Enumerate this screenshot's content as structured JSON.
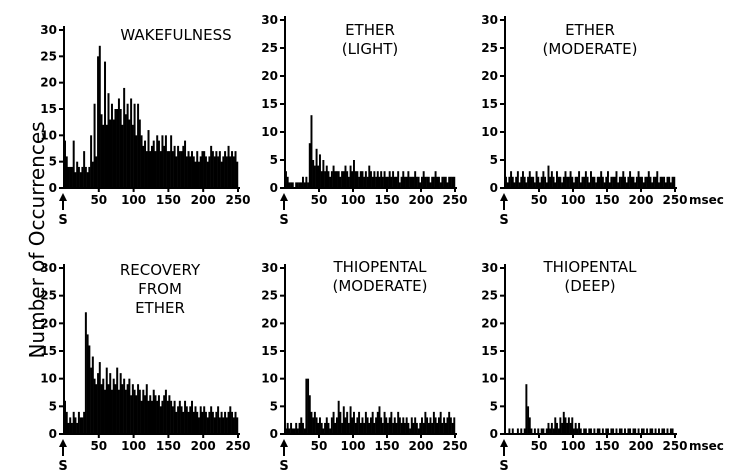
{
  "figure": {
    "ylabel": "Number of Occurrences",
    "xunit": "msec"
  },
  "chart_data": [
    {
      "type": "bar",
      "title": "WAKEFULNESS",
      "stimulus_label": "S",
      "xlim": [
        0,
        250
      ],
      "ylim": [
        0,
        30
      ],
      "xticks": [
        50,
        100,
        150,
        200,
        250
      ],
      "yticks": [
        0,
        5,
        10,
        15,
        20,
        25,
        30
      ],
      "bin_width": 2.5,
      "values": [
        9,
        6,
        4,
        4,
        4,
        9,
        3,
        5,
        4,
        3,
        4,
        7,
        4,
        3,
        4,
        10,
        5,
        16,
        6,
        25,
        27,
        14,
        12,
        24,
        12,
        18,
        13,
        16,
        13,
        15,
        15,
        17,
        15,
        12,
        19,
        14,
        16,
        13,
        17,
        12,
        16,
        10,
        16,
        13,
        10,
        8,
        9,
        7,
        11,
        7,
        8,
        9,
        7,
        10,
        9,
        7,
        10,
        8,
        10,
        7,
        7,
        10,
        7,
        8,
        6,
        8,
        7,
        7,
        8,
        9,
        6,
        7,
        6,
        7,
        6,
        5,
        7,
        5,
        6,
        7,
        7,
        6,
        5,
        6,
        8,
        7,
        6,
        7,
        6,
        7,
        5,
        6,
        7,
        6,
        8,
        6,
        7,
        6,
        7,
        5
      ]
    },
    {
      "type": "bar",
      "title": "ETHER\n(LIGHT)",
      "stimulus_label": "S",
      "xlim": [
        0,
        250
      ],
      "ylim": [
        0,
        30
      ],
      "xticks": [
        50,
        100,
        150,
        200,
        250
      ],
      "yticks": [
        0,
        5,
        10,
        15,
        20,
        25,
        30
      ],
      "bin_width": 2.5,
      "values": [
        3,
        2,
        1,
        1,
        1,
        0,
        1,
        1,
        1,
        1,
        2,
        1,
        2,
        1,
        8,
        13,
        5,
        4,
        7,
        4,
        6,
        3,
        5,
        3,
        4,
        3,
        2,
        3,
        4,
        3,
        3,
        3,
        2,
        3,
        3,
        4,
        3,
        2,
        4,
        3,
        5,
        3,
        3,
        2,
        3,
        3,
        2,
        3,
        2,
        4,
        3,
        2,
        3,
        2,
        3,
        2,
        3,
        2,
        3,
        2,
        2,
        3,
        2,
        3,
        2,
        2,
        3,
        1,
        2,
        3,
        2,
        2,
        3,
        2,
        2,
        2,
        3,
        2,
        2,
        1,
        2,
        3,
        2,
        2,
        2,
        1,
        2,
        2,
        3,
        2,
        2,
        1,
        2,
        2,
        2,
        1,
        2,
        2,
        2,
        2
      ]
    },
    {
      "type": "bar",
      "title": "ETHER\n(MODERATE)",
      "stimulus_label": "S",
      "xlim": [
        0,
        250
      ],
      "ylim": [
        0,
        30
      ],
      "xticks": [
        50,
        100,
        150,
        200,
        250
      ],
      "yticks": [
        0,
        5,
        10,
        15,
        20,
        25,
        30
      ],
      "bin_width": 2.5,
      "values": [
        2,
        1,
        2,
        3,
        2,
        1,
        2,
        3,
        1,
        2,
        3,
        2,
        1,
        2,
        3,
        2,
        2,
        1,
        3,
        2,
        1,
        2,
        3,
        2,
        1,
        4,
        2,
        3,
        2,
        1,
        3,
        2,
        2,
        1,
        2,
        3,
        2,
        2,
        3,
        2,
        1,
        2,
        2,
        3,
        1,
        2,
        2,
        3,
        2,
        1,
        3,
        2,
        2,
        1,
        2,
        2,
        3,
        2,
        1,
        2,
        3,
        1,
        2,
        2,
        2,
        3,
        1,
        2,
        2,
        3,
        2,
        1,
        2,
        3,
        2,
        2,
        1,
        2,
        3,
        2,
        2,
        1,
        2,
        2,
        3,
        2,
        1,
        2,
        2,
        3,
        1,
        2,
        2,
        2,
        1,
        2,
        2,
        1,
        2,
        2
      ]
    },
    {
      "type": "bar",
      "title": "RECOVERY\nFROM\nETHER",
      "stimulus_label": "S",
      "xlim": [
        0,
        250
      ],
      "ylim": [
        0,
        30
      ],
      "xticks": [
        50,
        100,
        150,
        200,
        250
      ],
      "yticks": [
        0,
        5,
        10,
        15,
        20,
        25,
        30
      ],
      "bin_width": 2.5,
      "values": [
        6,
        4,
        2,
        3,
        2,
        4,
        3,
        2,
        4,
        3,
        3,
        4,
        22,
        18,
        16,
        12,
        14,
        10,
        9,
        11,
        13,
        9,
        10,
        8,
        12,
        9,
        11,
        8,
        10,
        9,
        12,
        8,
        11,
        9,
        10,
        8,
        9,
        10,
        7,
        9,
        8,
        7,
        9,
        8,
        6,
        8,
        7,
        9,
        6,
        7,
        6,
        8,
        7,
        6,
        7,
        5,
        6,
        7,
        8,
        6,
        7,
        6,
        5,
        6,
        4,
        5,
        6,
        5,
        4,
        6,
        5,
        4,
        5,
        6,
        4,
        5,
        4,
        3,
        5,
        4,
        5,
        4,
        3,
        4,
        5,
        4,
        3,
        4,
        5,
        3,
        4,
        3,
        4,
        3,
        4,
        5,
        4,
        3,
        4,
        3
      ]
    },
    {
      "type": "bar",
      "title": "THIOPENTAL\n(MODERATE)",
      "stimulus_label": "S",
      "xlim": [
        0,
        250
      ],
      "ylim": [
        0,
        30
      ],
      "xticks": [
        50,
        100,
        150,
        200,
        250
      ],
      "yticks": [
        0,
        5,
        10,
        15,
        20,
        25,
        30
      ],
      "bin_width": 2.5,
      "values": [
        1,
        2,
        1,
        2,
        1,
        1,
        2,
        1,
        2,
        3,
        2,
        1,
        10,
        10,
        7,
        4,
        3,
        4,
        3,
        2,
        3,
        2,
        1,
        2,
        3,
        2,
        1,
        3,
        4,
        2,
        3,
        6,
        4,
        2,
        5,
        3,
        4,
        2,
        5,
        3,
        4,
        2,
        3,
        4,
        2,
        3,
        2,
        4,
        3,
        2,
        3,
        4,
        2,
        3,
        4,
        5,
        3,
        2,
        4,
        3,
        2,
        3,
        4,
        2,
        3,
        2,
        4,
        3,
        2,
        3,
        2,
        3,
        2,
        1,
        3,
        2,
        3,
        2,
        1,
        2,
        3,
        2,
        4,
        3,
        2,
        3,
        2,
        4,
        3,
        2,
        3,
        4,
        2,
        3,
        2,
        3,
        4,
        3,
        2,
        3
      ]
    },
    {
      "type": "bar",
      "title": "THIOPENTAL\n(DEEP)",
      "stimulus_label": "S",
      "xlim": [
        0,
        250
      ],
      "ylim": [
        0,
        30
      ],
      "xticks": [
        50,
        100,
        150,
        200,
        250
      ],
      "yticks": [
        0,
        5,
        10,
        15,
        20,
        25,
        30
      ],
      "bin_width": 2.5,
      "values": [
        0,
        0,
        1,
        0,
        1,
        0,
        0,
        1,
        0,
        1,
        0,
        1,
        9,
        5,
        3,
        1,
        0,
        1,
        0,
        1,
        0,
        1,
        1,
        0,
        1,
        2,
        1,
        2,
        1,
        3,
        2,
        1,
        3,
        2,
        4,
        3,
        2,
        3,
        2,
        3,
        1,
        2,
        1,
        2,
        1,
        0,
        1,
        1,
        0,
        1,
        1,
        0,
        1,
        0,
        1,
        1,
        0,
        1,
        0,
        1,
        1,
        0,
        1,
        1,
        0,
        1,
        0,
        1,
        1,
        0,
        1,
        0,
        1,
        1,
        0,
        1,
        1,
        0,
        1,
        0,
        1,
        1,
        0,
        1,
        0,
        1,
        1,
        0,
        1,
        0,
        1,
        0,
        1,
        1,
        0,
        1,
        0,
        1,
        1,
        0
      ]
    }
  ]
}
